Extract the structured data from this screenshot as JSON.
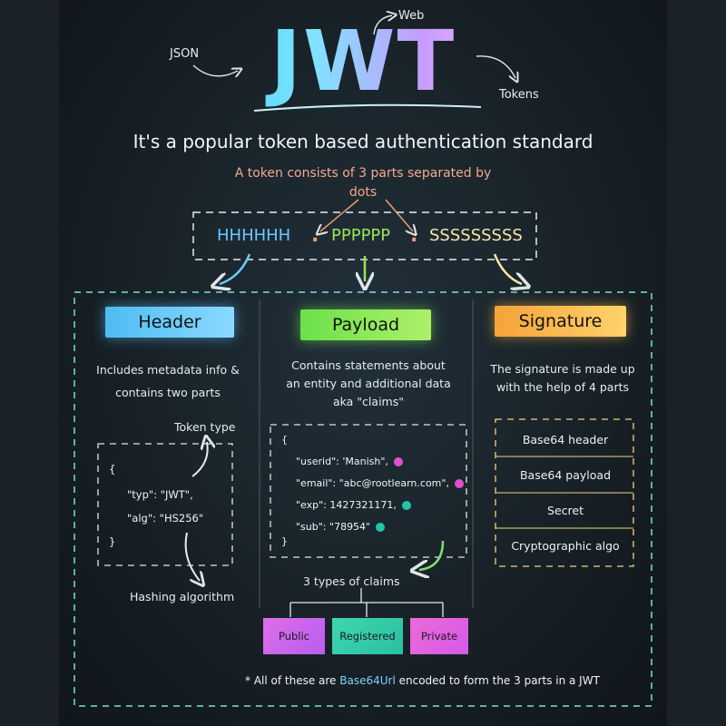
{
  "title": {
    "main": "JWT",
    "tag_json": "JSON",
    "tag_web": "Web",
    "tag_tokens": "Tokens"
  },
  "subtitle": "It's a popular token based authentication standard",
  "token_note": {
    "line1": "A token consists of 3 parts separated by",
    "line2": "dots"
  },
  "token": {
    "header": "HHHHHH",
    "payload": "PPPPPP",
    "signature": "SSSSSSSSS",
    "separator": "."
  },
  "sections": {
    "header": {
      "label": "Header",
      "desc_line1": "Includes metadata info &",
      "desc_line2": "contains two parts",
      "annotation_top": "Token type",
      "annotation_bottom": "Hashing algorithm",
      "code": [
        "{",
        "\"typ\": \"JWT\",",
        "\"alg\": \"HS256\"",
        "}"
      ]
    },
    "payload": {
      "label": "Payload",
      "desc_line1": "Contains statements about",
      "desc_line2": "an entity and additional data",
      "desc_line3": "aka \"claims\"",
      "code": [
        "{",
        "\"userid\": 'Manish\",",
        "\"email\": \"abc@rootlearn.com\",",
        "\"exp\": 1427321171,",
        "\"sub\": \"78954\"",
        "}"
      ],
      "claims_title": "3 types of claims",
      "claims": [
        "Public",
        "Registered",
        "Private"
      ]
    },
    "signature": {
      "label": "Signature",
      "desc_line1": "The signature is made up",
      "desc_line2": "with the help of 4 parts",
      "parts": [
        "Base64 header",
        "Base64 payload",
        "Secret",
        "Cryptographic algo"
      ]
    }
  },
  "footer": {
    "prefix": "* All of these are ",
    "highlight": "Base64Url",
    "suffix": " encoded to form the 3 parts in a JWT"
  },
  "colors": {
    "header": "#4ebcf2",
    "payload": "#6be14a",
    "signature": "#f5a23a",
    "note": "#f5a98a",
    "dot_pink": "#e24fd0",
    "dot_teal": "#1fc7a6"
  }
}
